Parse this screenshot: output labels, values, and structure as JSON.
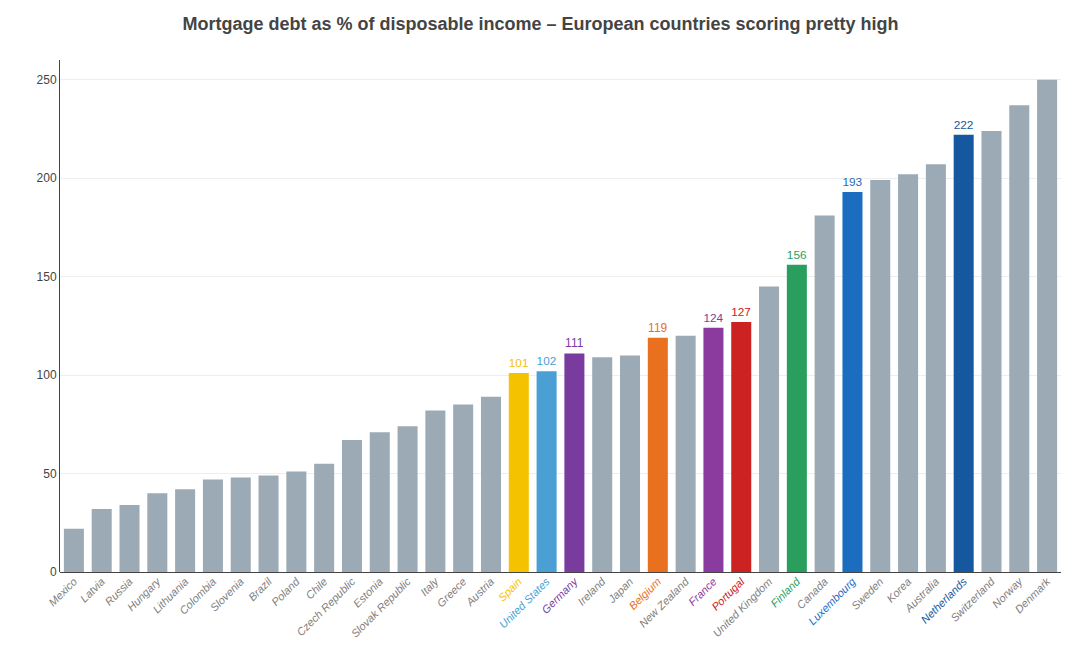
{
  "chart_data": {
    "type": "bar",
    "title": "Mortgage debt as % of disposable income – European countries scoring pretty high",
    "categories": [
      "Mexico",
      "Latvia",
      "Russia",
      "Hungary",
      "Lithuania",
      "Colombia",
      "Slovenia",
      "Brazil",
      "Poland",
      "Chile",
      "Czech Republic",
      "Estonia",
      "Slovak Republic",
      "Italy",
      "Greece",
      "Austria",
      "Spain",
      "United States",
      "Germany",
      "Ireland",
      "Japan",
      "Belgium",
      "New Zealand",
      "France",
      "Portugal",
      "United Kingdom",
      "Finland",
      "Canada",
      "Luxembourg",
      "Sweden",
      "Korea",
      "Australia",
      "Netherlands",
      "Switzerland",
      "Norway",
      "Denmark"
    ],
    "values": [
      22,
      32,
      34,
      40,
      42,
      47,
      48,
      49,
      51,
      55,
      67,
      71,
      74,
      82,
      85,
      89,
      101,
      102,
      111,
      109,
      110,
      119,
      120,
      124,
      127,
      145,
      156,
      181,
      193,
      199,
      202,
      207,
      222,
      224,
      237,
      250
    ],
    "value_labels": [
      null,
      null,
      null,
      null,
      null,
      null,
      null,
      null,
      null,
      null,
      null,
      null,
      null,
      null,
      null,
      null,
      "101",
      "102",
      "111",
      null,
      null,
      "119",
      null,
      "124",
      "127",
      null,
      "156",
      null,
      "193",
      null,
      null,
      null,
      "222",
      null,
      null,
      null
    ],
    "colors": [
      "#9baab5",
      "#9baab5",
      "#9baab5",
      "#9baab5",
      "#9baab5",
      "#9baab5",
      "#9baab5",
      "#9baab5",
      "#9baab5",
      "#9baab5",
      "#9baab5",
      "#9baab5",
      "#9baab5",
      "#9baab5",
      "#9baab5",
      "#9baab5",
      "#f5c200",
      "#4a9fd4",
      "#7a3b9e",
      "#9baab5",
      "#9baab5",
      "#e8701e",
      "#9baab5",
      "#8b3a9e",
      "#cc2222",
      "#9baab5",
      "#2a9e5c",
      "#9baab5",
      "#1a6dbf",
      "#9baab5",
      "#9baab5",
      "#9baab5",
      "#1558a0",
      "#9baab5",
      "#9baab5",
      "#9baab5"
    ],
    "ylim": [
      0,
      260
    ],
    "yticks": [
      0,
      50,
      100,
      150,
      200,
      250
    ],
    "grid": true
  }
}
